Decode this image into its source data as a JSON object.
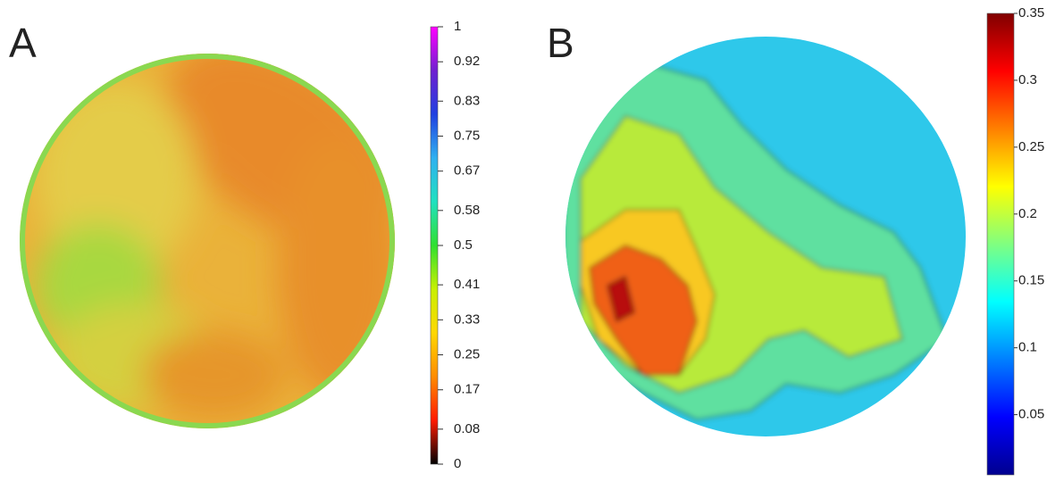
{
  "chart_data": [
    {
      "type": "heatmap",
      "label": "A",
      "colorbar": {
        "ylim": [
          0,
          1
        ],
        "yticks": [
          0,
          0.08,
          0.17,
          0.25,
          0.33,
          0.41,
          0.5,
          0.58,
          0.67,
          0.75,
          0.83,
          0.92,
          1
        ],
        "colormap": [
          "#000000",
          "#ff1a00",
          "#ff8c00",
          "#ffd700",
          "#c8f000",
          "#30e030",
          "#20e0c0",
          "#30b0f0",
          "#2040e0",
          "#7020d0",
          "#ff00ff"
        ]
      }
    },
    {
      "type": "heatmap",
      "label": "B",
      "colorbar": {
        "ylim": [
          0.005,
          0.35
        ],
        "yticks": [
          0.05,
          0.1,
          0.15,
          0.2,
          0.25,
          0.3,
          0.35
        ],
        "colormap": [
          "#00008f",
          "#0000ff",
          "#0080ff",
          "#00ffff",
          "#80ff80",
          "#ffff00",
          "#ff8000",
          "#ff0000",
          "#800000"
        ]
      }
    }
  ]
}
